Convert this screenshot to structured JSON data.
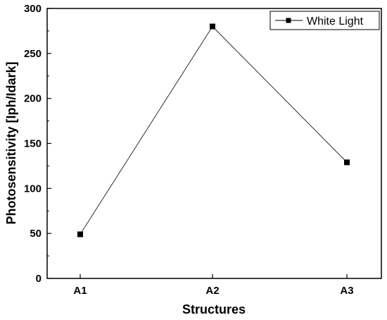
{
  "chart_data": {
    "type": "line",
    "categories": [
      "A1",
      "A2",
      "A3"
    ],
    "series": [
      {
        "name": "White Light",
        "values": [
          49,
          280,
          129
        ],
        "color": "#000000",
        "marker": "square"
      }
    ],
    "xlabel": "Structures",
    "ylabel": "Photosensitivity [Iph/Idark]",
    "ylim": [
      0,
      300
    ],
    "yticks": [
      "0",
      "50",
      "100",
      "150",
      "200",
      "250",
      "300"
    ],
    "grid": false,
    "legend_position": "top-right"
  }
}
